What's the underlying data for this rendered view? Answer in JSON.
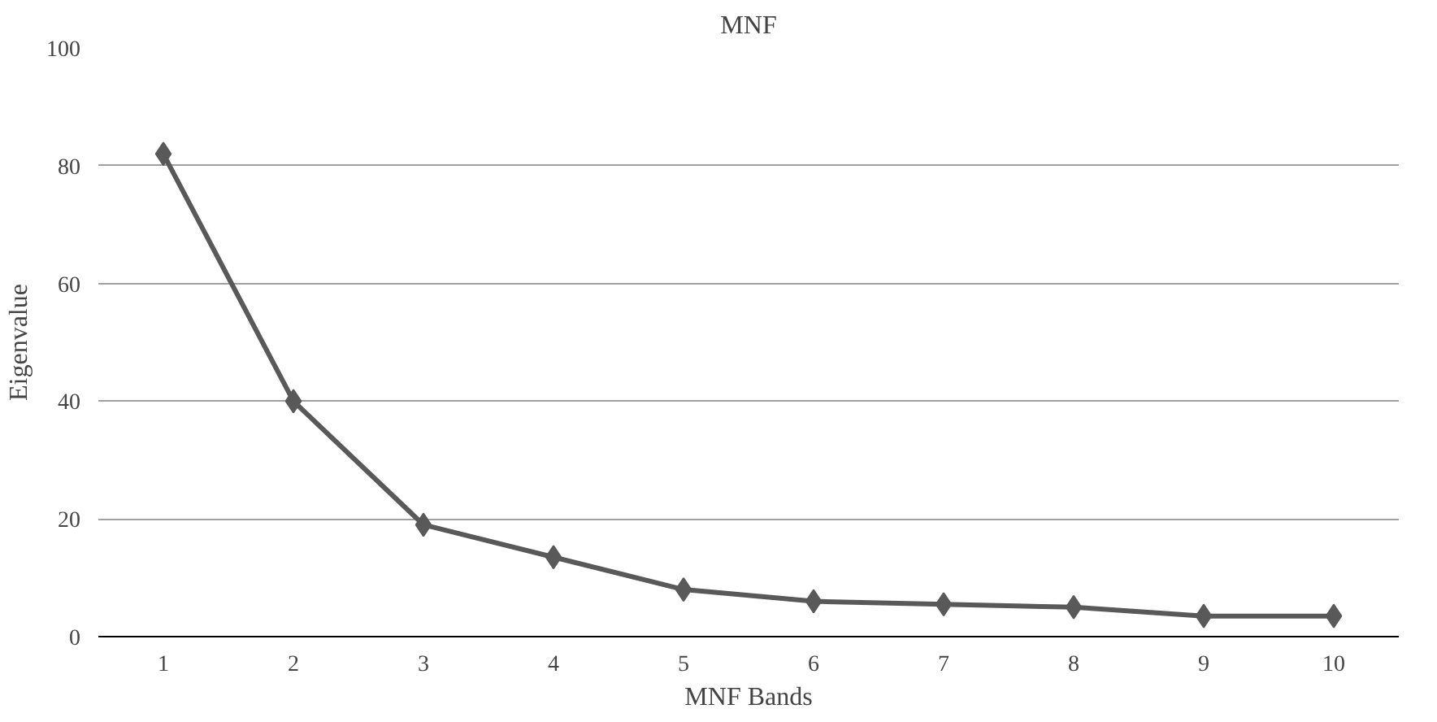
{
  "chart_data": {
    "type": "line",
    "title": "MNF",
    "xlabel": "MNF Bands",
    "ylabel": "Eigenvalue",
    "categories": [
      "1",
      "2",
      "3",
      "4",
      "5",
      "6",
      "7",
      "8",
      "9",
      "10"
    ],
    "series": [
      {
        "color": "#595959",
        "values": [
          82,
          40,
          19,
          13.5,
          8,
          6,
          5.5,
          5,
          3.5,
          3.5
        ]
      }
    ],
    "ylim": [
      0,
      100
    ],
    "yticks": [
      0,
      20,
      40,
      60,
      80,
      100
    ],
    "grid": "y",
    "marker": "diamond",
    "line_style": "solid"
  }
}
